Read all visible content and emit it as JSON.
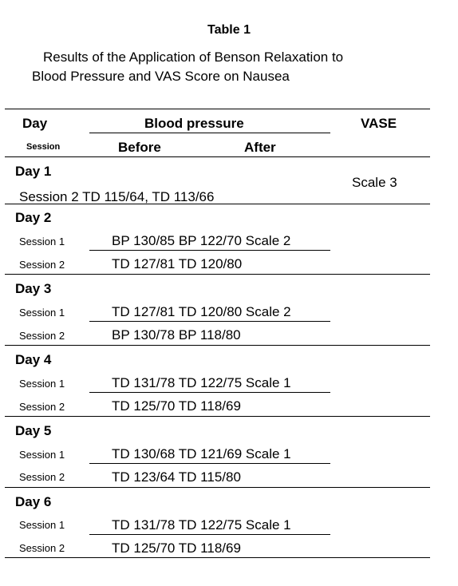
{
  "title": "Table 1",
  "caption_line1": "Results of the Application of Benson Relaxation to",
  "caption_line2": "Blood Pressure and VAS Score on Nausea",
  "header": {
    "day": "Day",
    "session": "Session",
    "blood_pressure": "Blood pressure",
    "before": "Before",
    "after": "After",
    "vase": "VASE"
  },
  "day1": {
    "label": "Day 1",
    "row_text": "Session 2 TD 115/64, TD 113/66",
    "vase": "Scale 3"
  },
  "days": [
    {
      "label": "Day 2",
      "s1_label": "Session 1",
      "s1_text": "BP 130/85 BP 122/70 Scale 2",
      "s2_label": "Session 2",
      "s2_text": "TD 127/81 TD 120/80"
    },
    {
      "label": "Day 3",
      "s1_label": "Session 1",
      "s1_text": "TD 127/81 TD 120/80 Scale 2",
      "s2_label": "Session 2",
      "s2_text": "BP 130/78 BP 118/80"
    },
    {
      "label": "Day 4",
      "s1_label": "Session 1",
      "s1_text": "TD 131/78 TD 122/75 Scale 1",
      "s2_label": "Session 2",
      "s2_text": "TD 125/70 TD 118/69"
    },
    {
      "label": "Day 5",
      "s1_label": "Session 1",
      "s1_text": "TD 130/68 TD 121/69 Scale 1",
      "s2_label": "Session 2",
      "s2_text": "TD 123/64 TD 115/80"
    },
    {
      "label": "Day 6",
      "s1_label": "Session 1",
      "s1_text": "TD 131/78 TD 122/75 Scale 1",
      "s2_label": "Session 2",
      "s2_text": "TD 125/70 TD 118/69"
    }
  ]
}
